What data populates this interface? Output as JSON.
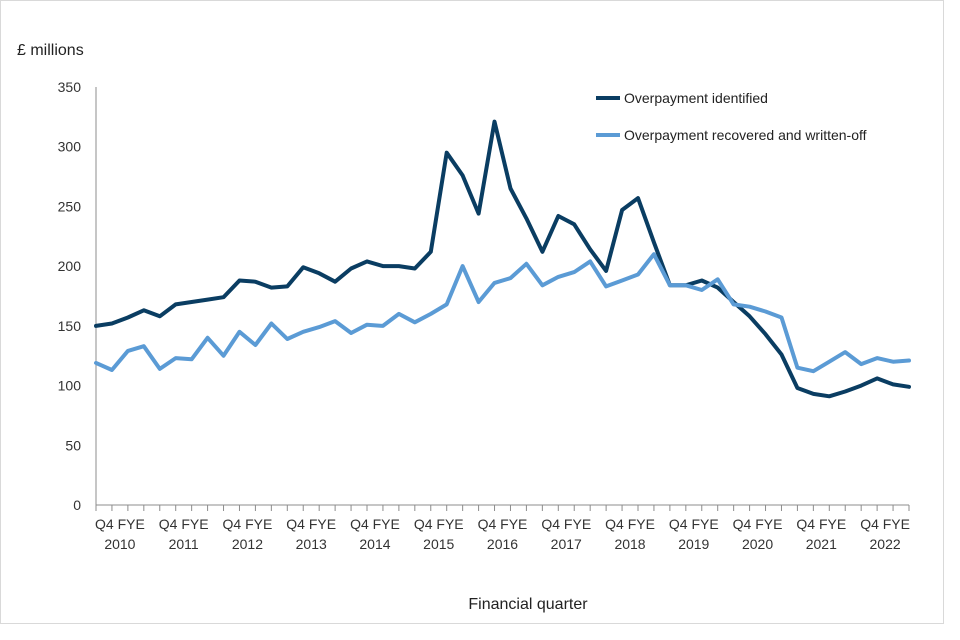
{
  "chart_data": {
    "type": "line",
    "ylabel": "£ millions",
    "xlabel": "Financial quarter",
    "ylim": [
      0,
      350
    ],
    "yticks": [
      0,
      50,
      100,
      150,
      200,
      250,
      300,
      350
    ],
    "xtick_prefix": "Q4 FYE",
    "xtick_years": [
      "2010",
      "2011",
      "2012",
      "2013",
      "2014",
      "2015",
      "2016",
      "2017",
      "2018",
      "2019",
      "2020",
      "2021",
      "2022"
    ],
    "grid": false,
    "legend_position": "top-right",
    "series": [
      {
        "name": "Overpayment identified",
        "color": "#0a3d62",
        "values": [
          150,
          152,
          157,
          163,
          158,
          168,
          170,
          172,
          174,
          188,
          187,
          182,
          183,
          199,
          194,
          187,
          198,
          204,
          200,
          200,
          198,
          212,
          295,
          276,
          244,
          321,
          265,
          240,
          212,
          242,
          235,
          214,
          196,
          247,
          257,
          220,
          184,
          184,
          188,
          182,
          170,
          158,
          143,
          126,
          98,
          93,
          91,
          95,
          100,
          106,
          101,
          99
        ]
      },
      {
        "name": "Overpayment recovered and written-off",
        "color": "#5b9bd5",
        "values": [
          119,
          113,
          129,
          133,
          114,
          123,
          122,
          140,
          125,
          145,
          134,
          152,
          139,
          145,
          149,
          154,
          144,
          151,
          150,
          160,
          153,
          160,
          168,
          200,
          170,
          186,
          190,
          202,
          184,
          191,
          195,
          204,
          183,
          188,
          193,
          210,
          184,
          184,
          180,
          189,
          168,
          166,
          162,
          157,
          115,
          112,
          120,
          128,
          118,
          123,
          120,
          121
        ]
      }
    ]
  }
}
